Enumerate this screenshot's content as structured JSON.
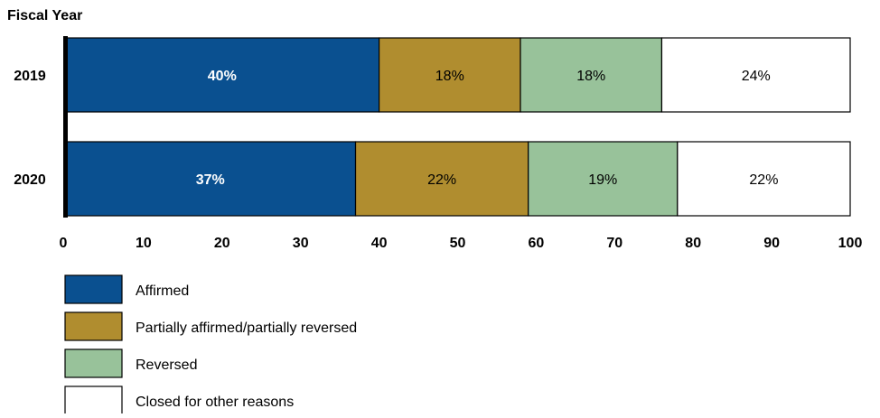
{
  "chart_data": {
    "type": "bar",
    "orientation": "horizontal",
    "stacked": true,
    "y_axis_title": "Fiscal Year",
    "categories": [
      "2019",
      "2020"
    ],
    "series": [
      {
        "name": "Affirmed",
        "values": [
          40,
          37
        ],
        "color": "#0a5090",
        "labels": [
          "40%",
          "37%"
        ],
        "label_color": "#ffffff",
        "label_bold": true
      },
      {
        "name": "Partially affirmed/partially reversed",
        "values": [
          18,
          22
        ],
        "color": "#b08d2f",
        "labels": [
          "18%",
          "22%"
        ],
        "label_color": "#000000",
        "label_bold": false
      },
      {
        "name": "Reversed",
        "values": [
          18,
          19
        ],
        "color": "#98c29a",
        "labels": [
          "18%",
          "19%"
        ],
        "label_color": "#000000",
        "label_bold": false
      },
      {
        "name": "Closed for other reasons",
        "values": [
          24,
          22
        ],
        "color": "#ffffff",
        "labels": [
          "24%",
          "22%"
        ],
        "label_color": "#000000",
        "label_bold": false
      }
    ],
    "xlim": [
      0,
      100
    ],
    "xticks": [
      "0",
      "10",
      "20",
      "30",
      "40",
      "50",
      "60",
      "70",
      "80",
      "90",
      "100"
    ],
    "grid": false,
    "legend_position": "bottom-left"
  }
}
